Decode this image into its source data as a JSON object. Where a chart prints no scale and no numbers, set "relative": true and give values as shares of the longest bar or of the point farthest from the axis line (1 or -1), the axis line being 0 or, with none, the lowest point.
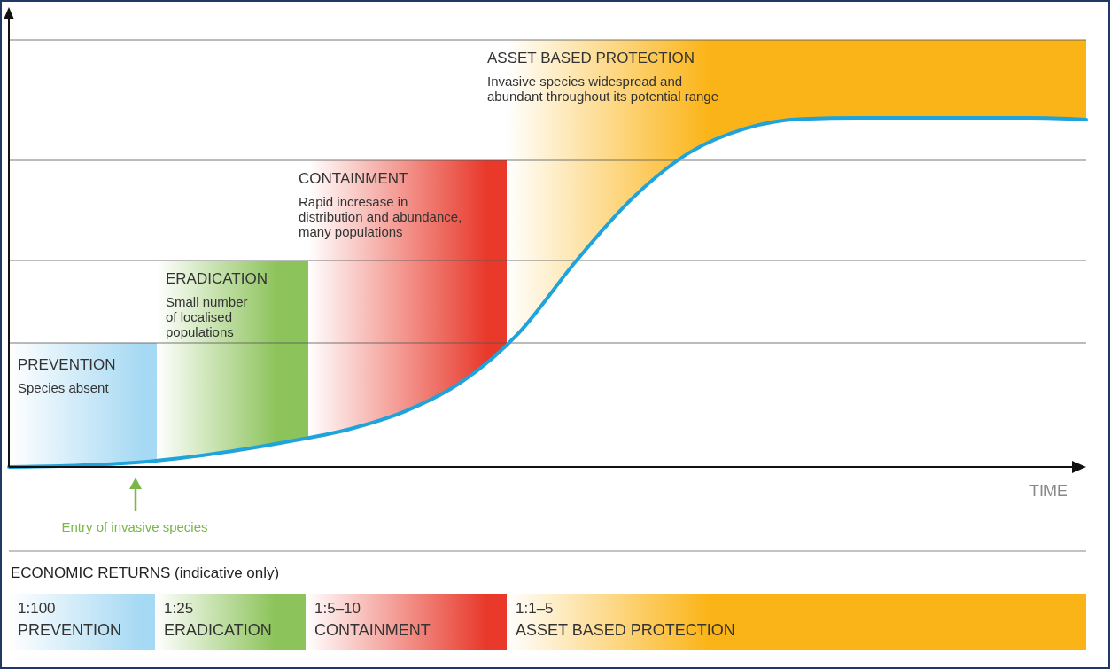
{
  "chart_data": {
    "type": "line",
    "relative": true,
    "xlabel": "TIME",
    "categories": [
      null,
      null,
      null,
      null,
      null,
      null,
      null,
      null,
      null,
      null,
      null,
      null,
      null,
      null,
      null,
      null,
      null,
      null,
      null,
      null
    ],
    "series": [
      {
        "color": "#1fa3dc",
        "values": [
          0,
          0.003,
          0.01,
          0.025,
          0.047,
          0.075,
          0.108,
          0.16,
          0.245,
          0.385,
          0.589,
          0.77,
          0.9,
          0.97,
          0.997,
          1,
          1,
          1,
          1,
          0.995
        ]
      }
    ],
    "annotations": [
      "PREVENTION",
      "Species absent",
      "ERADICATION",
      "Small number\nof localised\npopulations",
      "CONTAINMENT",
      "Rapid incresase in\ndistribution and abundance,\nmany populations",
      "ASSET BASED PROTECTION",
      "Invasive species widespread and\nabundant throughout its potential range",
      "Entry of invasive species",
      "ECONOMIC RETURNS (indicative only)",
      "1:100",
      "PREVENTION",
      "1:25",
      "ERADICATION",
      "1:5–10",
      "CONTAINMENT",
      "1:1–5",
      "ASSET BASED PROTECTION"
    ]
  }
}
